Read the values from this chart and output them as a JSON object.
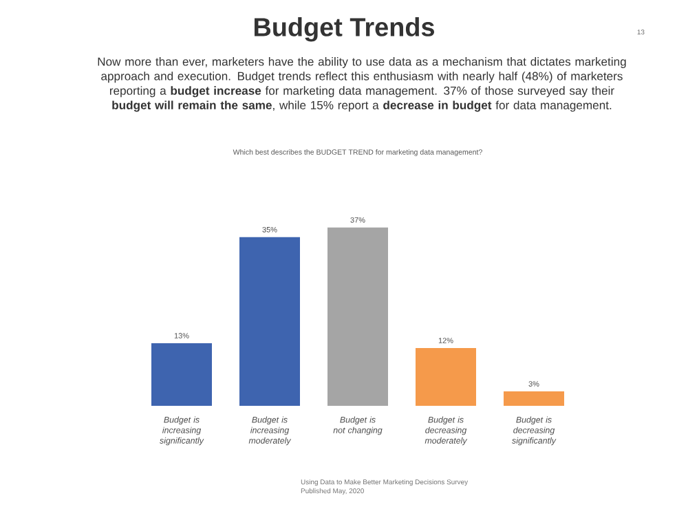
{
  "chart_data": {
    "type": "bar",
    "title": "Budget Trends",
    "subtitle": "Now more than ever, marketers have the ability to use data as a mechanism that dictates marketing approach and execution. Budget trends reflect this enthusiasm with nearly half (48%) of marketers reporting a **budget increase** for marketing data management. 37% of those surveyed say their **budget will remain the same**, while 15% report a **decrease in budget** for data management.",
    "categories": [
      "Budget is increasing significantly",
      "Budget is increasing moderately",
      "Budget is not changing",
      "Budget is decreasing moderately",
      "Budget is decreasing significantly"
    ],
    "values": [
      13,
      35,
      37,
      12,
      3
    ],
    "value_labels": [
      "13%",
      "35%",
      "37%",
      "12%",
      "3%"
    ],
    "colors": [
      "#3e64af",
      "#3e64af",
      "#a5a5a5",
      "#f59a4b",
      "#f59a4b"
    ],
    "annotations": [
      "Which best describes the BUDGET TREND for marketing data management?",
      "13",
      "Using Data to Make Better Marketing Decisions Survey",
      "Published May, 2020"
    ]
  }
}
